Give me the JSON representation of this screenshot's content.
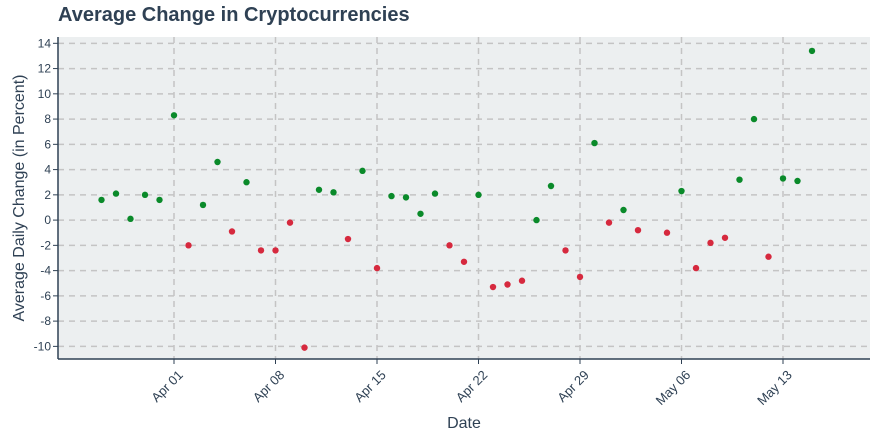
{
  "chart_data": {
    "type": "scatter",
    "title": "Average Change in Cryptocurrencies",
    "xlabel": "Date",
    "ylabel": "Average Daily Change (in Percent)",
    "x_tick_dates": [
      "2024-04-01",
      "2024-04-08",
      "2024-04-15",
      "2024-04-22",
      "2024-04-29",
      "2024-05-06",
      "2024-05-13"
    ],
    "x_tick_labels": [
      "Apr 01",
      "Apr 08",
      "Apr 15",
      "Apr 22",
      "Apr 29",
      "May 06",
      "May 13"
    ],
    "xlim": [
      "2024-03-24",
      "2024-05-19"
    ],
    "y_ticks": [
      14,
      12,
      10,
      8,
      6,
      4,
      2,
      0,
      -2,
      -4,
      -6,
      -8,
      -10
    ],
    "y_tick_labels": [
      "14",
      "12",
      "10",
      "8",
      "6",
      "4",
      "2",
      "0",
      "-2",
      "-4",
      "-6",
      "-8",
      "-10"
    ],
    "ylim": [
      -11,
      14.5
    ],
    "grid": true,
    "colors": {
      "positive": "#0a8a2a",
      "negative": "#d6293e",
      "plot_bg": "#eceff0",
      "grid": "#c4c4c4",
      "axis": "#2f4154",
      "text": "#2f4154"
    },
    "points": [
      {
        "x": "2024-03-27",
        "y": 1.6
      },
      {
        "x": "2024-03-28",
        "y": 2.1
      },
      {
        "x": "2024-03-29",
        "y": 0.1
      },
      {
        "x": "2024-03-30",
        "y": 2.0
      },
      {
        "x": "2024-03-31",
        "y": 1.6
      },
      {
        "x": "2024-04-01",
        "y": 8.3
      },
      {
        "x": "2024-04-02",
        "y": -2.0
      },
      {
        "x": "2024-04-03",
        "y": 1.2
      },
      {
        "x": "2024-04-04",
        "y": 4.6
      },
      {
        "x": "2024-04-05",
        "y": -0.9
      },
      {
        "x": "2024-04-06",
        "y": 3.0
      },
      {
        "x": "2024-04-07",
        "y": -2.4
      },
      {
        "x": "2024-04-08",
        "y": -2.4
      },
      {
        "x": "2024-04-09",
        "y": -0.2
      },
      {
        "x": "2024-04-10",
        "y": -10.1
      },
      {
        "x": "2024-04-11",
        "y": 2.4
      },
      {
        "x": "2024-04-12",
        "y": 2.2
      },
      {
        "x": "2024-04-13",
        "y": -1.5
      },
      {
        "x": "2024-04-14",
        "y": 3.9
      },
      {
        "x": "2024-04-15",
        "y": -3.8
      },
      {
        "x": "2024-04-16",
        "y": 1.9
      },
      {
        "x": "2024-04-17",
        "y": 1.8
      },
      {
        "x": "2024-04-18",
        "y": 0.5
      },
      {
        "x": "2024-04-19",
        "y": 2.1
      },
      {
        "x": "2024-04-20",
        "y": -2.0
      },
      {
        "x": "2024-04-21",
        "y": -3.3
      },
      {
        "x": "2024-04-22",
        "y": 2.0
      },
      {
        "x": "2024-04-23",
        "y": -5.3
      },
      {
        "x": "2024-04-24",
        "y": -5.1
      },
      {
        "x": "2024-04-25",
        "y": -4.8
      },
      {
        "x": "2024-04-26",
        "y": 0.0
      },
      {
        "x": "2024-04-27",
        "y": 2.7
      },
      {
        "x": "2024-04-28",
        "y": -2.4
      },
      {
        "x": "2024-04-29",
        "y": -4.5
      },
      {
        "x": "2024-04-30",
        "y": 6.1
      },
      {
        "x": "2024-05-01",
        "y": -0.2
      },
      {
        "x": "2024-05-02",
        "y": 0.8
      },
      {
        "x": "2024-05-03",
        "y": -0.8
      },
      {
        "x": "2024-05-05",
        "y": -1.0
      },
      {
        "x": "2024-05-06",
        "y": 2.3
      },
      {
        "x": "2024-05-07",
        "y": -3.8
      },
      {
        "x": "2024-05-08",
        "y": -1.8
      },
      {
        "x": "2024-05-09",
        "y": -1.4
      },
      {
        "x": "2024-05-10",
        "y": 3.2
      },
      {
        "x": "2024-05-11",
        "y": 8.0
      },
      {
        "x": "2024-05-12",
        "y": -2.9
      },
      {
        "x": "2024-05-13",
        "y": 3.3
      },
      {
        "x": "2024-05-14",
        "y": 3.1
      },
      {
        "x": "2024-05-15",
        "y": 13.4
      }
    ]
  }
}
